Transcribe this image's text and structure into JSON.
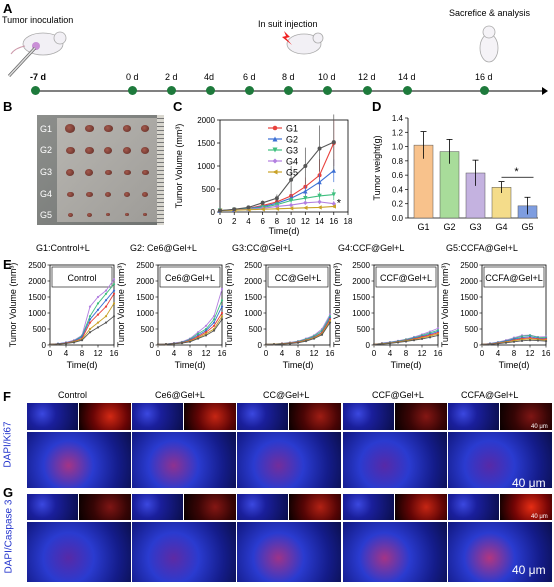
{
  "panel_a": {
    "label": "A",
    "events": {
      "inoculation": "Tumor inoculation",
      "injection": "In suit injection",
      "analysis": "Sacrefice & analysis"
    },
    "days": [
      "-7 d",
      "0 d",
      "2 d",
      "4d",
      "6 d",
      "8 d",
      "10 d",
      "12 d",
      "14 d",
      "16 d"
    ],
    "colors": {
      "timeline": "#1e7a3c"
    }
  },
  "panel_b": {
    "label": "B",
    "groups": [
      "G1",
      "G2",
      "G3",
      "G4",
      "G5"
    ]
  },
  "panel_c": {
    "label": "C"
  },
  "panel_d": {
    "label": "D"
  },
  "panel_e": {
    "label": "E",
    "titles": [
      "G1:Control+L",
      "G2: Ce6@Gel+L",
      "G3:CC@Gel+L",
      "G4:CCF@Gel+L",
      "G5:CCFA@Gel+L"
    ],
    "insets": [
      "Control",
      "Ce6@Gel+L",
      "CC@Gel+L",
      "CCF@Gel+L",
      "CCFA@Gel+L"
    ]
  },
  "panel_f": {
    "label": "F",
    "stain": "DAPI/Ki67",
    "columns": [
      "Control",
      "Ce6@Gel+L",
      "CC@Gel+L",
      "CCF@Gel+L",
      "CCFA@Gel+L"
    ],
    "scale_small": "40 μm",
    "scale_large": "40 μm"
  },
  "panel_g": {
    "label": "G",
    "stain": "DAPI/Caspase 3",
    "scale_small": "40 μm",
    "scale_large": "40 μm"
  },
  "chart_data": [
    {
      "type": "line",
      "id": "C",
      "xlabel": "Time(d)",
      "ylabel": "Tumor Volume (mm³)",
      "x": [
        0,
        2,
        4,
        6,
        8,
        10,
        12,
        14,
        16
      ],
      "xlim": [
        0,
        18
      ],
      "ylim": [
        0,
        2000
      ],
      "xticks": [
        0,
        2,
        4,
        6,
        8,
        10,
        12,
        14,
        16,
        18
      ],
      "yticks": [
        0,
        500,
        1000,
        1500,
        2000
      ],
      "annotation": "*",
      "series": [
        {
          "name": "G1",
          "color": "#e8413c",
          "values": [
            30,
            50,
            80,
            140,
            220,
            350,
            550,
            800,
            1500
          ]
        },
        {
          "name": "G2",
          "color": "#3b6fd4",
          "values": [
            30,
            50,
            75,
            120,
            190,
            300,
            450,
            650,
            900
          ]
        },
        {
          "name": "G3",
          "color": "#3fbf7f",
          "values": [
            30,
            45,
            70,
            100,
            160,
            250,
            300,
            350,
            380
          ]
        },
        {
          "name": "G4",
          "color": "#b27fe0",
          "values": [
            30,
            45,
            60,
            80,
            120,
            150,
            200,
            220,
            180
          ]
        },
        {
          "name": "G5",
          "color": "#c9a227",
          "values": [
            30,
            40,
            50,
            60,
            70,
            80,
            90,
            100,
            120
          ]
        },
        {
          "color": "#555555",
          "values": [
            30,
            60,
            100,
            200,
            300,
            700,
            1000,
            1380,
            1520
          ]
        }
      ]
    },
    {
      "type": "bar",
      "id": "D",
      "categories": [
        "G1",
        "G2",
        "G3",
        "G4",
        "G5"
      ],
      "values": [
        1.02,
        0.93,
        0.63,
        0.43,
        0.17
      ],
      "errors": [
        0.19,
        0.17,
        0.18,
        0.08,
        0.12
      ],
      "colors": [
        "#f8c28c",
        "#a8dc9a",
        "#c4b2e0",
        "#f4dc8a",
        "#7e9de0"
      ],
      "ylabel": "Tumor weight(g)",
      "ylim": [
        0,
        1.4
      ],
      "yticks": [
        0.0,
        0.2,
        0.4,
        0.6,
        0.8,
        1.0,
        1.2,
        1.4
      ],
      "annotation": "*"
    },
    {
      "type": "line",
      "id": "E",
      "xlabel": "Time(d)",
      "ylabel": "Tumor Volume (mm³)",
      "x": [
        0,
        2,
        4,
        6,
        8,
        10,
        12,
        14,
        16
      ],
      "ylim": [
        0,
        2500
      ],
      "xticks": [
        0,
        4,
        8,
        12,
        16
      ],
      "yticks": [
        0,
        500,
        1000,
        1500,
        2000,
        2500
      ],
      "panels": [
        {
          "name": "Control",
          "lines": [
            [
              20,
              40,
              80,
              150,
              300,
              1200,
              1500,
              1700,
              2050
            ],
            [
              20,
              35,
              70,
              130,
              280,
              900,
              1300,
              1600,
              1900
            ],
            [
              20,
              40,
              70,
              120,
              250,
              800,
              1100,
              1400,
              1700
            ],
            [
              20,
              30,
              60,
              110,
              200,
              700,
              950,
              1200,
              1600
            ],
            [
              20,
              30,
              50,
              100,
              180,
              500,
              700,
              900,
              1300
            ],
            [
              20,
              30,
              50,
              80,
              150,
              400,
              550,
              700,
              900
            ]
          ]
        },
        {
          "name": "Ce6@Gel+L",
          "lines": [
            [
              20,
              30,
              60,
              100,
              200,
              400,
              600,
              900,
              1750
            ],
            [
              20,
              30,
              50,
              90,
              180,
              350,
              500,
              800,
              1400
            ],
            [
              20,
              30,
              50,
              80,
              160,
              300,
              450,
              700,
              1200
            ],
            [
              20,
              25,
              45,
              70,
              140,
              260,
              400,
              600,
              1000
            ],
            [
              20,
              25,
              40,
              60,
              120,
              220,
              350,
              500,
              900
            ],
            [
              20,
              25,
              40,
              60,
              100,
              200,
              300,
              450,
              800
            ]
          ]
        },
        {
          "name": "CC@Gel+L",
          "lines": [
            [
              20,
              30,
              50,
              80,
              120,
              200,
              300,
              500,
              950
            ],
            [
              20,
              30,
              45,
              70,
              110,
              180,
              280,
              450,
              900
            ],
            [
              20,
              25,
              40,
              60,
              100,
              160,
              250,
              400,
              850
            ],
            [
              20,
              25,
              40,
              60,
              90,
              150,
              230,
              380,
              800
            ],
            [
              20,
              25,
              35,
              50,
              80,
              140,
              220,
              350,
              750
            ],
            [
              20,
              20,
              30,
              45,
              70,
              120,
              200,
              320,
              700
            ]
          ]
        },
        {
          "name": "CCF@Gel+L",
          "lines": [
            [
              20,
              60,
              90,
              130,
              180,
              250,
              330,
              420,
              520
            ],
            [
              20,
              50,
              80,
              120,
              170,
              230,
              300,
              380,
              460
            ],
            [
              20,
              50,
              70,
              110,
              150,
              210,
              270,
              340,
              420
            ],
            [
              20,
              40,
              60,
              100,
              140,
              190,
              250,
              310,
              380
            ],
            [
              20,
              40,
              60,
              90,
              130,
              170,
              220,
              280,
              340
            ],
            [
              20,
              30,
              50,
              80,
              110,
              150,
              190,
              240,
              300
            ]
          ]
        },
        {
          "name": "CCFA@Gel+L",
          "lines": [
            [
              20,
              50,
              90,
              150,
              230,
              300,
              310,
              250,
              260
            ],
            [
              20,
              40,
              80,
              130,
              200,
              270,
              300,
              240,
              230
            ],
            [
              20,
              40,
              70,
              120,
              180,
              230,
              260,
              210,
              200
            ],
            [
              20,
              30,
              60,
              100,
              150,
              200,
              220,
              190,
              180
            ],
            [
              20,
              30,
              50,
              90,
              130,
              170,
              190,
              170,
              150
            ],
            [
              20,
              20,
              40,
              70,
              100,
              130,
              150,
              140,
              120
            ]
          ]
        }
      ],
      "colors": [
        "#b27fe0",
        "#3fbf7f",
        "#3b6fd4",
        "#e8413c",
        "#c9a227",
        "#555555"
      ]
    }
  ]
}
